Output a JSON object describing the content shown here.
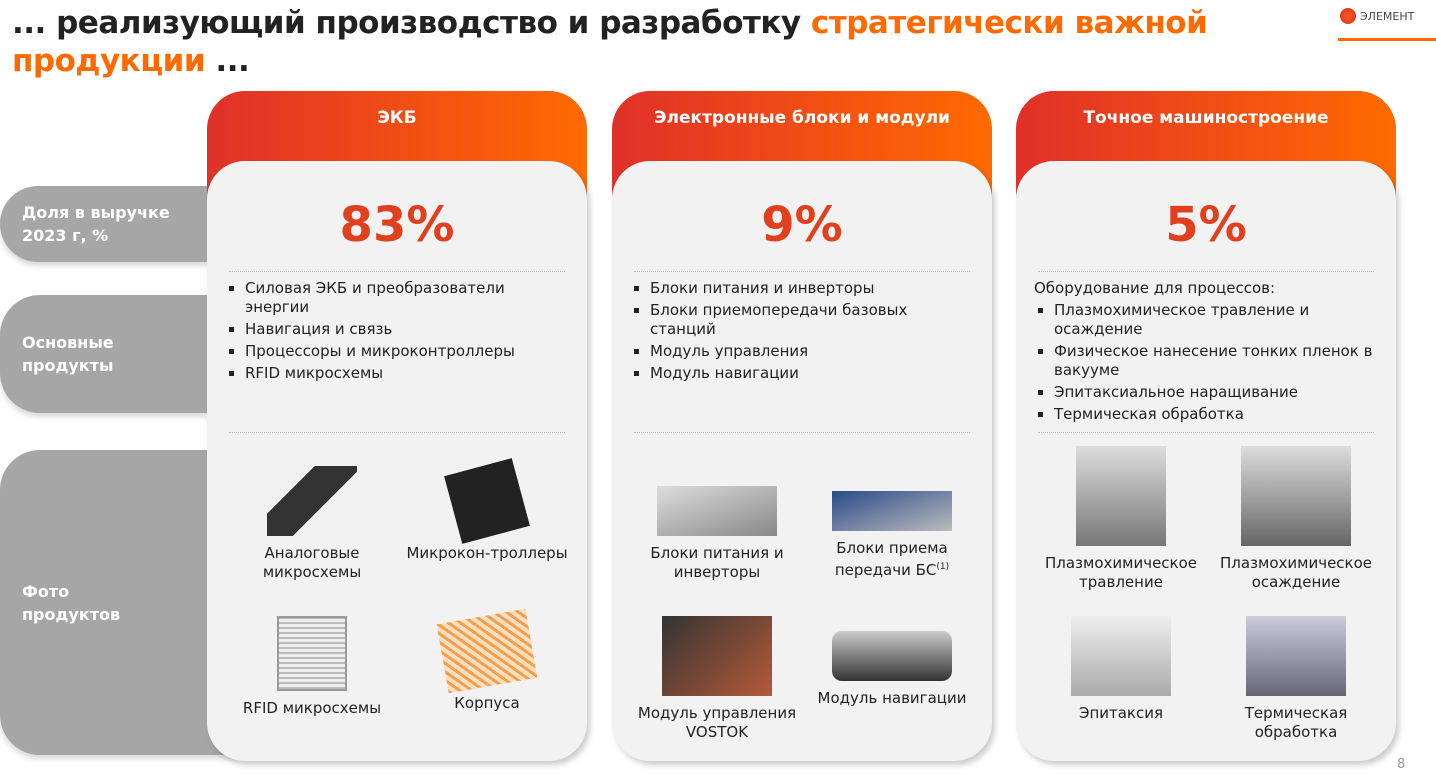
{
  "title": {
    "part1": "... реализующий производство и разработку ",
    "highlight1": "стратегически важной",
    "highlight2": "продукции",
    "part2": " ..."
  },
  "logo": {
    "text": "ЭЛЕМЕНТ"
  },
  "row_labels": {
    "revenue": "Доля в выручке 2023 г, %",
    "products": "Основные продукты",
    "photos": "Фото продуктов"
  },
  "columns": [
    {
      "header": "ЭКБ",
      "share": "83%",
      "intro": "",
      "items": [
        "Силовая ЭКБ и преобразователи энергии",
        "Навигация и связь",
        "Процессоры и микроконтроллеры",
        "RFID микросхемы"
      ],
      "photos": [
        {
          "label": "Аналоговые микросхемы",
          "sup": ""
        },
        {
          "label": "Микрокон-троллеры",
          "sup": ""
        },
        {
          "label": "RFID микросхемы",
          "sup": ""
        },
        {
          "label": "Корпуса",
          "sup": ""
        }
      ]
    },
    {
      "header": "Электронные блоки и модули",
      "share": "9%",
      "intro": "",
      "items": [
        "Блоки питания и инверторы",
        "Блоки приемопередачи базовых станций",
        "Модуль управления",
        "Модуль навигации"
      ],
      "photos": [
        {
          "label": "Блоки питания и инверторы",
          "sup": ""
        },
        {
          "label": "Блоки приема передачи БС",
          "sup": "(1)"
        },
        {
          "label": "Модуль управления VOSTOK",
          "sup": ""
        },
        {
          "label": "Модуль навигации",
          "sup": ""
        }
      ]
    },
    {
      "header": "Точное машиностроение",
      "share": "5%",
      "intro": "Оборудование для процессов:",
      "items": [
        "Плазмохимическое травление и осаждение",
        "Физическое нанесение тонких пленок в вакууме",
        "Эпитаксиальное наращивание",
        "Термическая обработка"
      ],
      "photos": [
        {
          "label": "Плазмохимическое травление",
          "sup": ""
        },
        {
          "label": "Плазмохимическое осаждение",
          "sup": ""
        },
        {
          "label": "Эпитаксия",
          "sup": ""
        },
        {
          "label": "Термическая обработка",
          "sup": ""
        }
      ]
    }
  ],
  "page_number": "8",
  "colors": {
    "accent": "#ff6a00",
    "red": "#e0302a",
    "label_gray": "#a6a6a6"
  }
}
